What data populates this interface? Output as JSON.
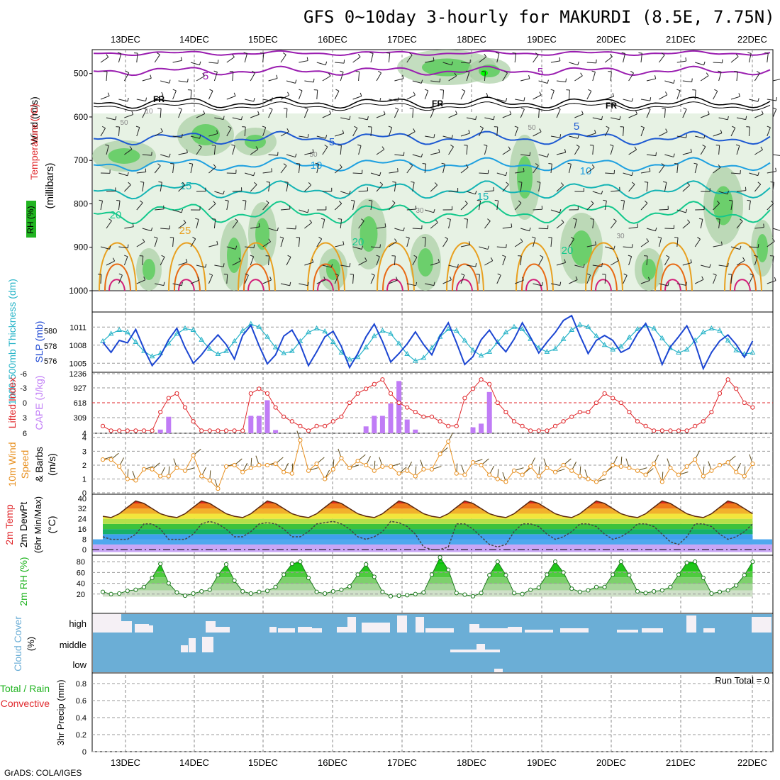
{
  "title": "GFS 0~10day 3-hourly for MAKURDI (8.5E, 7.75N)",
  "footer": "GrADS: COLA/IGES",
  "run_total": "Run Total = 0",
  "colors": {
    "temp_red": "#e0282c",
    "rh_green": "#22b422",
    "wind_black": "#000000",
    "cape_purple": "#c07cf6",
    "thickness_cyan": "#28b4c8",
    "slp_blue": "#1c46d2",
    "wind10_orange": "#e89020",
    "cloud_blue": "#6baed6"
  },
  "chart_data": [
    {
      "type": "contour",
      "panel": "upper-air",
      "xaxis_days": [
        "13DEC",
        "14DEC",
        "15DEC",
        "16DEC",
        "17DEC",
        "18DEC",
        "19DEC",
        "20DEC",
        "21DEC",
        "22DEC"
      ],
      "ylabel": "(millibars)",
      "yticks": [
        "500",
        "600",
        "700",
        "800",
        "900",
        "1000"
      ],
      "legend": [
        "RH (%)",
        "Temperature (°C)",
        "Wind (m/s)"
      ],
      "isotherm_labels": [
        "5",
        "5",
        "FR",
        "FR",
        "FR",
        "5",
        "5",
        "10",
        "10",
        "15",
        "15",
        "20",
        "20",
        "20",
        "25",
        "50",
        "50",
        "50",
        "30",
        "30",
        "10"
      ]
    },
    {
      "type": "line",
      "panel": "thickness-slp",
      "ylabel_left": "1000-500mb Thickness (dm)",
      "ylabel_right": "SLP (mb)",
      "yticks_left": [
        "580",
        "578",
        "576"
      ],
      "yticks_right": [
        "1011",
        "1008",
        "1005"
      ],
      "series": [
        {
          "name": "Thickness (dm)",
          "values": [
            578.6,
            579.6,
            580.1,
            579.8,
            578.5,
            577.3,
            576.6,
            577.0,
            578.3,
            579.6,
            580.3,
            580.1,
            578.8,
            577.6,
            576.9,
            577.3,
            578.6,
            580.0,
            580.9,
            580.5,
            579.2,
            577.8,
            577.0,
            577.3,
            578.6,
            579.8,
            580.3,
            579.9,
            578.5,
            577.1,
            576.2,
            576.5,
            577.8,
            579.3,
            580.0,
            579.6,
            578.3,
            576.9,
            576.0,
            576.4,
            577.7,
            579.2,
            580.2,
            580.0,
            578.7,
            577.4,
            576.7,
            577.2,
            578.5,
            579.8,
            580.5,
            580.2,
            578.9,
            577.7,
            577.2,
            577.6,
            578.9,
            580.1,
            580.8,
            580.5,
            579.3,
            578.1,
            577.5,
            577.9,
            579.1,
            580.2,
            580.7,
            580.3,
            579.0,
            577.7,
            577.1,
            577.5,
            578.7,
            579.8,
            580.3,
            580.0,
            578.7,
            577.4,
            576.9,
            577.1
          ]
        },
        {
          "name": "SLP (mb)",
          "values": [
            1008.5,
            1006.8,
            1008.8,
            1008.4,
            1010.6,
            1007.4,
            1004.6,
            1006.2,
            1008.9,
            1010.8,
            1007.6,
            1005.0,
            1006.4,
            1008.2,
            1009.7,
            1008.1,
            1005.7,
            1009.6,
            1011.3,
            1007.9,
            1004.9,
            1006.4,
            1009.5,
            1010.5,
            1008.1,
            1004.6,
            1006.9,
            1009.4,
            1010.3,
            1007.8,
            1004.3,
            1006.6,
            1009.4,
            1011.5,
            1008.6,
            1005.2,
            1006.6,
            1008.2,
            1010.2,
            1008.1,
            1006.4,
            1009.5,
            1011.7,
            1008.4,
            1004.8,
            1006.1,
            1008.9,
            1010.5,
            1008.4,
            1006.9,
            1009.0,
            1011.7,
            1009.3,
            1006.7,
            1008.5,
            1010.1,
            1012.1,
            1012.9,
            1009.6,
            1006.6,
            1008.8,
            1009.6,
            1008.8,
            1006.8,
            1007.5,
            1009.9,
            1011.6,
            1008.6,
            1004.8,
            1007.7,
            1009.4,
            1011.2,
            1008.3,
            1004.1,
            1006.8,
            1008.7,
            1009.7,
            1008.1,
            1006.0,
            1008.7
          ]
        }
      ]
    },
    {
      "type": "bar",
      "panel": "cape-li",
      "ylabel_left": "Lifted Index",
      "ylabel_right": "CAPE (J/kg)",
      "yticks_left": [
        "-6",
        "-3",
        "0",
        "3",
        "6"
      ],
      "yticks_right": [
        "1236",
        "927",
        "618",
        "309",
        "4"
      ],
      "series": [
        {
          "name": "CAPE (J/kg)",
          "values": [
            0,
            0,
            0,
            0,
            0,
            0,
            0,
            80,
            360,
            0,
            0,
            0,
            0,
            0,
            0,
            0,
            0,
            0,
            380,
            380,
            720,
            70,
            0,
            0,
            0,
            0,
            0,
            0,
            0,
            0,
            0,
            0,
            150,
            380,
            380,
            650,
            1140,
            300,
            80,
            0,
            0,
            0,
            0,
            0,
            0,
            130,
            210,
            900,
            0,
            0,
            0,
            0,
            0,
            0,
            0,
            0,
            0,
            0,
            0,
            0,
            0,
            0,
            0,
            0,
            0,
            0,
            0,
            0,
            0,
            0,
            0,
            0,
            0,
            0,
            0,
            0,
            0,
            0,
            0,
            0
          ]
        },
        {
          "name": "Lifted Index",
          "values": [
            5,
            6,
            6,
            6,
            6,
            6,
            6,
            2,
            -1,
            -2,
            1,
            4,
            6,
            6,
            6,
            6,
            6,
            6,
            -2,
            -3,
            -2,
            1,
            3,
            4,
            5,
            6,
            5,
            5,
            4,
            3,
            0,
            -2,
            -3,
            -4,
            -5,
            -2,
            0,
            1,
            2,
            3,
            3,
            4,
            5,
            5,
            -1,
            -3,
            -5,
            -4,
            0,
            2,
            4,
            5,
            6,
            6,
            6,
            5,
            4,
            3,
            2,
            2,
            0,
            -2,
            -1,
            0,
            2,
            4,
            5,
            6,
            6,
            6,
            6,
            6,
            5,
            4,
            2,
            -2,
            -5,
            -3,
            0,
            1
          ]
        }
      ]
    },
    {
      "type": "line",
      "panel": "wind10m",
      "ylabel": "10m Wind Speed & Barbs (m/s)",
      "yticks": [
        "4",
        "3",
        "2",
        "1",
        "0"
      ],
      "series": [
        {
          "name": "10m Wind Speed (m/s)",
          "values": [
            2.4,
            2.4,
            1.9,
            1.0,
            0.9,
            1.7,
            1.7,
            1.2,
            1.2,
            1.8,
            1.6,
            2.7,
            1.2,
            0.9,
            0.3,
            1.9,
            2.0,
            1.5,
            1.8,
            2.0,
            2.0,
            2.1,
            1.5,
            1.4,
            3.8,
            1.6,
            2.1,
            1.0,
            1.7,
            2.5,
            1.8,
            2.3,
            2.0,
            1.6,
            1.9,
            1.9,
            1.4,
            1.6,
            1.2,
            1.7,
            1.7,
            2.8,
            3.7,
            1.4,
            1.3,
            2.2,
            2.0,
            1.3,
            1.0,
            0.8,
            1.6,
            1.3,
            1.9,
            1.2,
            1.8,
            1.5,
            2.0,
            1.6,
            1.2,
            1.0,
            0.8,
            1.4,
            2.0,
            1.9,
            1.8,
            1.6,
            1.3,
            2.1,
            0.8,
            1.8,
            1.3,
            1.9,
            2.4,
            1.2,
            1.6,
            2.0,
            2.2,
            1.5,
            1.2,
            2.1
          ]
        }
      ]
    },
    {
      "type": "area",
      "panel": "temperature",
      "ylabel": "2m Temp 2m DewPt (6hr Min/Max) (°C)",
      "yticks": [
        "40",
        "32",
        "24",
        "16",
        "8",
        "0"
      ],
      "series": [
        {
          "name": "2m Temp (°C)",
          "values": [
            26,
            25,
            28,
            33,
            38,
            36,
            32,
            28,
            26,
            25,
            28,
            33,
            38,
            36,
            32,
            28,
            26,
            25,
            28,
            33,
            38,
            36,
            32,
            28,
            26,
            25,
            28,
            33,
            38,
            36,
            32,
            28,
            26,
            25,
            28,
            33,
            38,
            36,
            32,
            28,
            26,
            25,
            28,
            33,
            38,
            36,
            32,
            28,
            26,
            25,
            28,
            33,
            38,
            36,
            32,
            28,
            26,
            25,
            28,
            33,
            38,
            36,
            32,
            28,
            26,
            25,
            28,
            33,
            38,
            36,
            32,
            28,
            26,
            25,
            28,
            33,
            38,
            36,
            32,
            28
          ]
        },
        {
          "name": "2m DewPt (°C)",
          "values": [
            10,
            8,
            8,
            8,
            12,
            20,
            20,
            16,
            8,
            8,
            8,
            12,
            20,
            22,
            20,
            16,
            10,
            10,
            14,
            20,
            21,
            20,
            16,
            10,
            10,
            14,
            20,
            21,
            22,
            20,
            16,
            10,
            8,
            10,
            14,
            22,
            21,
            18,
            12,
            2,
            0,
            0,
            2,
            20,
            20,
            16,
            10,
            4,
            2,
            4,
            14,
            20,
            20,
            18,
            12,
            8,
            10,
            14,
            20,
            20,
            18,
            12,
            8,
            10,
            14,
            20,
            20,
            18,
            12,
            6,
            4,
            10,
            20,
            20,
            18,
            12,
            8,
            10,
            14,
            20
          ]
        }
      ]
    },
    {
      "type": "area",
      "panel": "rh",
      "ylabel": "2m RH (%)",
      "yticks": [
        "80",
        "60",
        "40",
        "20"
      ],
      "series": [
        {
          "name": "2m RH (%)",
          "values": [
            24,
            20,
            21,
            26,
            28,
            33,
            50,
            76,
            40,
            23,
            17,
            21,
            25,
            28,
            55,
            75,
            45,
            25,
            21,
            24,
            26,
            33,
            56,
            76,
            80,
            50,
            24,
            21,
            25,
            28,
            34,
            56,
            75,
            52,
            24,
            16,
            17,
            18,
            20,
            23,
            56,
            88,
            65,
            22,
            19,
            16,
            22,
            55,
            80,
            55,
            22,
            20,
            28,
            32,
            56,
            80,
            60,
            30,
            24,
            27,
            33,
            33,
            56,
            80,
            55,
            25,
            22,
            25,
            27,
            33,
            56,
            78,
            80,
            50,
            21,
            24,
            27,
            36,
            55,
            80
          ]
        }
      ]
    },
    {
      "type": "heatmap",
      "panel": "cloud-cover",
      "ylabel": "Cloud Cover (%)",
      "yticks": [
        "high",
        "middle",
        "low"
      ]
    },
    {
      "type": "bar",
      "panel": "precip",
      "ylabel": "3hr Precip (mm)",
      "legend": [
        "Total / Rain",
        "Convective"
      ],
      "yticks": [
        "0.8",
        "0.6",
        "0.4",
        "0.2",
        "0"
      ],
      "values": []
    }
  ]
}
